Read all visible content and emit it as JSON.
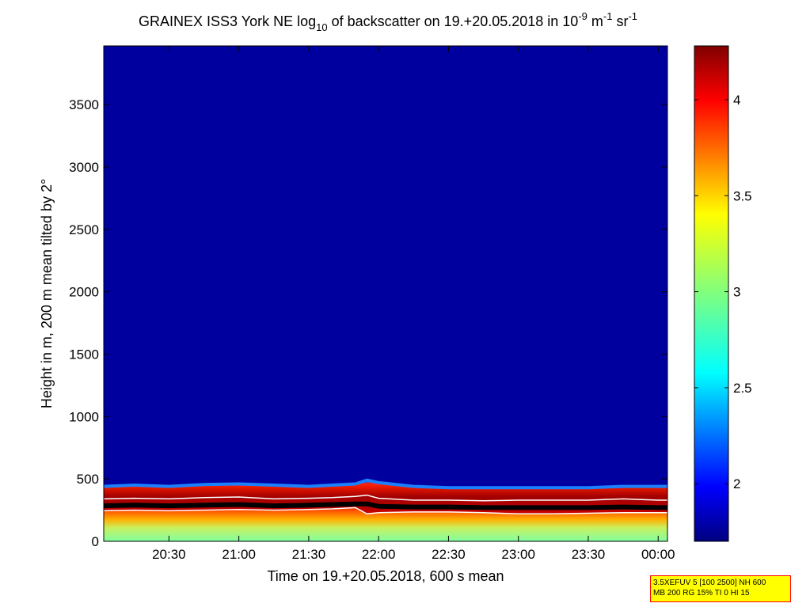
{
  "chart_data": {
    "type": "heatmap",
    "title": {
      "pre": "GRAINEX ISS3 York NE log",
      "sub": "10",
      "mid": " of backscatter on 19.+20.05.2018 in 10",
      "sup1": "-9",
      "mid2": " m",
      "sup2": "-1",
      "mid3": " sr",
      "sup3": "-1"
    },
    "xlabel": "Time on 19.+20.05.2018, 600 s mean",
    "ylabel": "Height in m, 200 m mean tilted by 2°",
    "x_ticks": [
      "20:30",
      "21:00",
      "21:30",
      "22:00",
      "22:30",
      "23:00",
      "23:30",
      "00:00"
    ],
    "x_tick_minutes": [
      1230,
      1260,
      1290,
      1320,
      1350,
      1380,
      1410,
      1440
    ],
    "xlim_minutes": [
      1202,
      1444
    ],
    "y_ticks": [
      0,
      500,
      1000,
      1500,
      2000,
      2500,
      3000,
      3500
    ],
    "ylim": [
      0,
      3970
    ],
    "colorbar": {
      "ticks": [
        2,
        2.5,
        3,
        3.5,
        4
      ],
      "tick_labels": [
        "2",
        "2.5",
        "3",
        "3.5",
        "4"
      ],
      "range": [
        1.7,
        4.28
      ],
      "colormap": "jet"
    },
    "series": [
      {
        "kind": "aerosol_layer_top",
        "x_minutes": [
          1202,
          1215,
          1230,
          1245,
          1260,
          1275,
          1290,
          1300,
          1310,
          1315,
          1320,
          1335,
          1350,
          1365,
          1380,
          1395,
          1410,
          1425,
          1440,
          1444
        ],
        "y": [
          440,
          450,
          440,
          455,
          460,
          450,
          440,
          450,
          460,
          490,
          470,
          440,
          430,
          430,
          430,
          430,
          430,
          440,
          440,
          440
        ]
      },
      {
        "kind": "white_line_upper",
        "x_minutes": [
          1202,
          1215,
          1230,
          1245,
          1260,
          1275,
          1290,
          1300,
          1310,
          1315,
          1320,
          1335,
          1350,
          1365,
          1380,
          1395,
          1410,
          1425,
          1440,
          1444
        ],
        "y": [
          340,
          345,
          340,
          350,
          355,
          340,
          345,
          350,
          360,
          370,
          345,
          330,
          330,
          325,
          330,
          330,
          330,
          340,
          330,
          330
        ]
      },
      {
        "kind": "black_boundary",
        "x_minutes": [
          1202,
          1215,
          1230,
          1245,
          1260,
          1275,
          1290,
          1300,
          1310,
          1315,
          1320,
          1335,
          1350,
          1365,
          1380,
          1395,
          1410,
          1425,
          1440,
          1444
        ],
        "y": [
          285,
          290,
          285,
          290,
          295,
          285,
          290,
          295,
          300,
          300,
          280,
          275,
          275,
          270,
          270,
          270,
          270,
          275,
          270,
          270
        ]
      },
      {
        "kind": "white_line_lower",
        "x_minutes": [
          1202,
          1215,
          1230,
          1245,
          1260,
          1275,
          1290,
          1300,
          1310,
          1315,
          1320,
          1335,
          1350,
          1365,
          1380,
          1395,
          1410,
          1425,
          1440,
          1444
        ],
        "y": [
          245,
          250,
          245,
          250,
          255,
          250,
          255,
          260,
          270,
          220,
          230,
          235,
          235,
          230,
          220,
          220,
          225,
          230,
          230,
          230
        ]
      }
    ]
  },
  "info_box": {
    "line1": "3.5XEFUV 5 [100 2500] NH 600",
    "line2": "MB 200 RG 15% TI 0 HI 15"
  }
}
